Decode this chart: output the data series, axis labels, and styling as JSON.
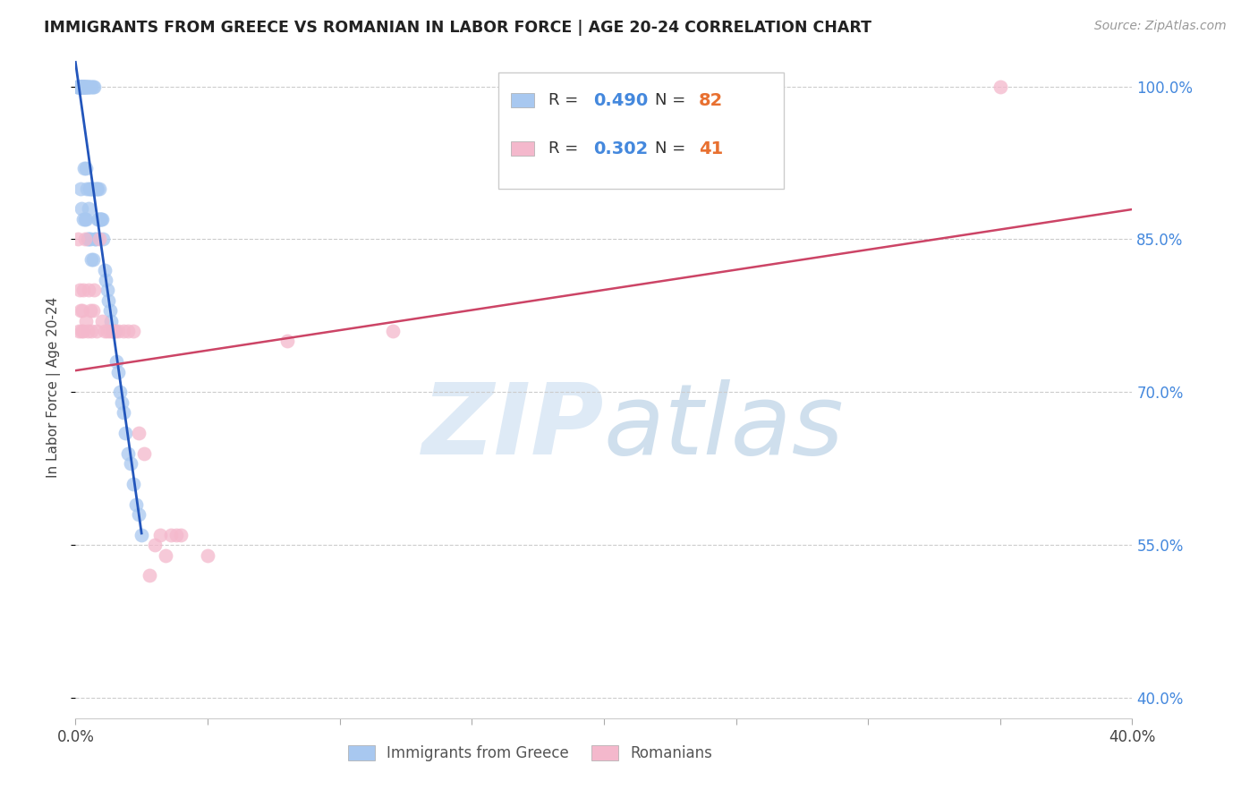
{
  "title": "IMMIGRANTS FROM GREECE VS ROMANIAN IN LABOR FORCE | AGE 20-24 CORRELATION CHART",
  "source": "Source: ZipAtlas.com",
  "ylabel": "In Labor Force | Age 20-24",
  "xlim": [
    0.0,
    0.4
  ],
  "ylim": [
    0.38,
    1.03
  ],
  "yticks": [
    0.4,
    0.55,
    0.7,
    0.85,
    1.0
  ],
  "xticks": [
    0.0,
    0.05,
    0.1,
    0.15,
    0.2,
    0.25,
    0.3,
    0.35,
    0.4
  ],
  "greece_R": 0.49,
  "greece_N": 82,
  "romania_R": 0.302,
  "romania_N": 41,
  "blue_color": "#A8C8F0",
  "pink_color": "#F4B8CC",
  "blue_line_color": "#2255BB",
  "pink_line_color": "#CC4466",
  "right_axis_color": "#4488DD",
  "greece_x": [
    0.0005,
    0.0008,
    0.001,
    0.001,
    0.0012,
    0.0015,
    0.0015,
    0.0018,
    0.0018,
    0.002,
    0.002,
    0.002,
    0.0022,
    0.0022,
    0.0025,
    0.0025,
    0.0028,
    0.0028,
    0.003,
    0.003,
    0.003,
    0.0032,
    0.0032,
    0.0035,
    0.0035,
    0.0035,
    0.0038,
    0.0038,
    0.004,
    0.004,
    0.0042,
    0.0042,
    0.0045,
    0.0045,
    0.0048,
    0.0048,
    0.005,
    0.005,
    0.0052,
    0.0055,
    0.0055,
    0.0058,
    0.006,
    0.006,
    0.0062,
    0.0065,
    0.0065,
    0.0068,
    0.007,
    0.0072,
    0.0075,
    0.0078,
    0.008,
    0.0082,
    0.0085,
    0.0088,
    0.009,
    0.0092,
    0.0095,
    0.0098,
    0.01,
    0.0105,
    0.011,
    0.0115,
    0.012,
    0.0125,
    0.013,
    0.0135,
    0.014,
    0.0148,
    0.0155,
    0.016,
    0.0168,
    0.0175,
    0.018,
    0.019,
    0.02,
    0.021,
    0.022,
    0.023,
    0.024,
    0.025
  ],
  "greece_y": [
    1.0,
    1.0,
    1.0,
    1.0,
    1.0,
    1.0,
    1.0,
    1.0,
    1.0,
    1.0,
    1.0,
    0.9,
    1.0,
    0.88,
    1.0,
    1.0,
    1.0,
    1.0,
    1.0,
    1.0,
    0.87,
    1.0,
    0.92,
    1.0,
    1.0,
    0.87,
    1.0,
    0.92,
    1.0,
    0.87,
    1.0,
    0.9,
    1.0,
    0.85,
    1.0,
    0.88,
    1.0,
    0.85,
    0.9,
    1.0,
    0.85,
    0.9,
    1.0,
    0.83,
    0.9,
    1.0,
    0.83,
    0.9,
    1.0,
    0.85,
    0.9,
    0.85,
    0.9,
    0.87,
    0.9,
    0.87,
    0.9,
    0.87,
    0.87,
    0.87,
    0.87,
    0.85,
    0.82,
    0.81,
    0.8,
    0.79,
    0.78,
    0.77,
    0.76,
    0.76,
    0.73,
    0.72,
    0.7,
    0.69,
    0.68,
    0.66,
    0.64,
    0.63,
    0.61,
    0.59,
    0.58,
    0.56
  ],
  "romania_x": [
    0.0008,
    0.0012,
    0.0015,
    0.002,
    0.0022,
    0.0025,
    0.0028,
    0.003,
    0.0035,
    0.004,
    0.0045,
    0.005,
    0.0055,
    0.006,
    0.0065,
    0.007,
    0.008,
    0.009,
    0.01,
    0.011,
    0.012,
    0.013,
    0.014,
    0.015,
    0.016,
    0.018,
    0.02,
    0.022,
    0.024,
    0.026,
    0.028,
    0.03,
    0.032,
    0.034,
    0.036,
    0.038,
    0.04,
    0.05,
    0.08,
    0.12,
    0.35
  ],
  "romania_y": [
    0.85,
    0.76,
    0.8,
    0.78,
    0.76,
    0.78,
    0.8,
    0.76,
    0.85,
    0.77,
    0.76,
    0.8,
    0.78,
    0.76,
    0.78,
    0.8,
    0.76,
    0.85,
    0.77,
    0.76,
    0.76,
    0.76,
    0.76,
    0.76,
    0.76,
    0.76,
    0.76,
    0.76,
    0.66,
    0.64,
    0.52,
    0.55,
    0.56,
    0.54,
    0.56,
    0.56,
    0.56,
    0.54,
    0.75,
    0.76,
    1.0
  ],
  "watermark_zip_color": "#C8DCF0",
  "watermark_atlas_color": "#A0C0DC"
}
